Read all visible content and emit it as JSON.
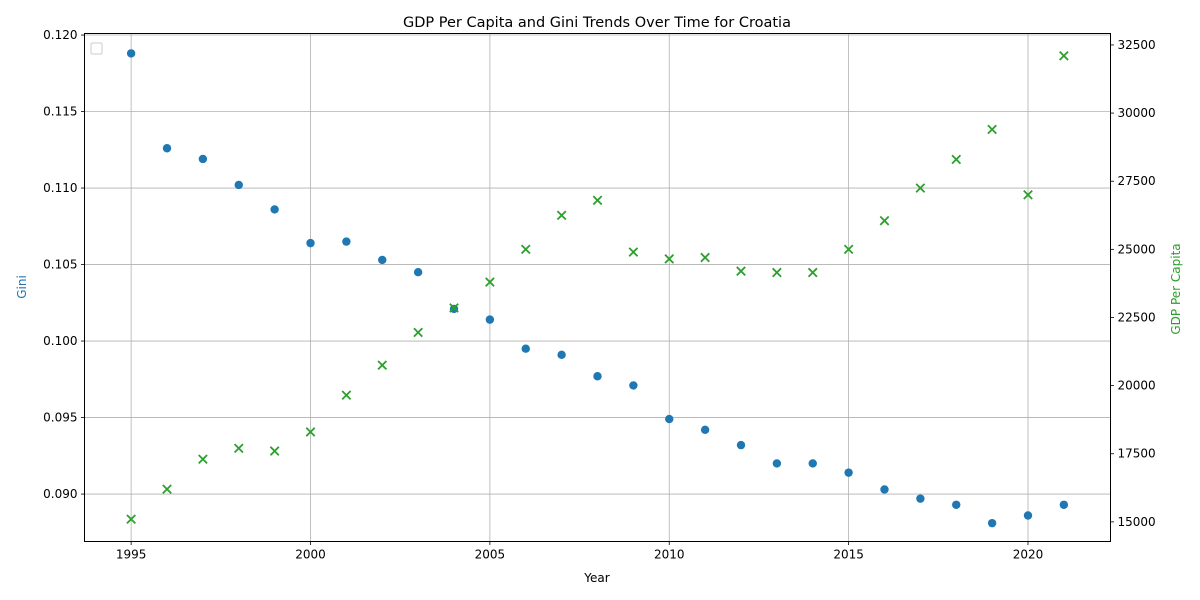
{
  "chart_data": {
    "type": "scatter",
    "title": "GDP Per Capita and Gini Trends Over Time for Croatia",
    "xlabel": "Year",
    "ylabel_left": "Gini",
    "ylabel_right": "GDP Per Capita",
    "x": [
      1995,
      1996,
      1997,
      1998,
      1999,
      2000,
      2001,
      2002,
      2003,
      2004,
      2005,
      2006,
      2007,
      2008,
      2009,
      2010,
      2011,
      2012,
      2013,
      2014,
      2015,
      2016,
      2017,
      2018,
      2019,
      2020,
      2021
    ],
    "series": [
      {
        "axis": "left",
        "marker": "circle",
        "color": "#1f77b4",
        "values": [
          0.1188,
          0.1126,
          0.1119,
          0.1102,
          0.1086,
          0.1064,
          0.1065,
          0.1053,
          0.1045,
          0.1021,
          0.1014,
          0.0995,
          0.0991,
          0.0977,
          0.0971,
          0.0949,
          0.0942,
          0.0932,
          0.092,
          0.092,
          0.0914,
          0.0903,
          0.0897,
          0.0893,
          0.0881,
          0.0886,
          0.0893
        ]
      },
      {
        "axis": "right",
        "marker": "x",
        "color": "#2ca02c",
        "values": [
          15100,
          16200,
          17300,
          17700,
          17600,
          18300,
          19650,
          20750,
          21950,
          22850,
          23800,
          25000,
          26250,
          26800,
          24900,
          24650,
          24700,
          24200,
          24150,
          24150,
          25000,
          26050,
          27250,
          28300,
          29400,
          27000,
          32100
        ]
      }
    ],
    "xlim": [
      1993.7,
      2022.3
    ],
    "ylim_left": [
      0.0869,
      0.1201
    ],
    "ylim_right": [
      14280,
      32920
    ],
    "x_ticks": [
      "1995",
      "2000",
      "2005",
      "2010",
      "2015",
      "2020"
    ],
    "y_left_ticks": [
      "0.090",
      "0.095",
      "0.100",
      "0.105",
      "0.110",
      "0.115",
      "0.120"
    ],
    "y_right_ticks": [
      "15000",
      "17500",
      "20000",
      "22500",
      "25000",
      "27500",
      "30000",
      "32500"
    ],
    "grid": true,
    "legend": "top-left (empty)",
    "colors": {
      "left_axis_label": "#1f77b4",
      "right_axis_label": "#2ca02c"
    }
  }
}
